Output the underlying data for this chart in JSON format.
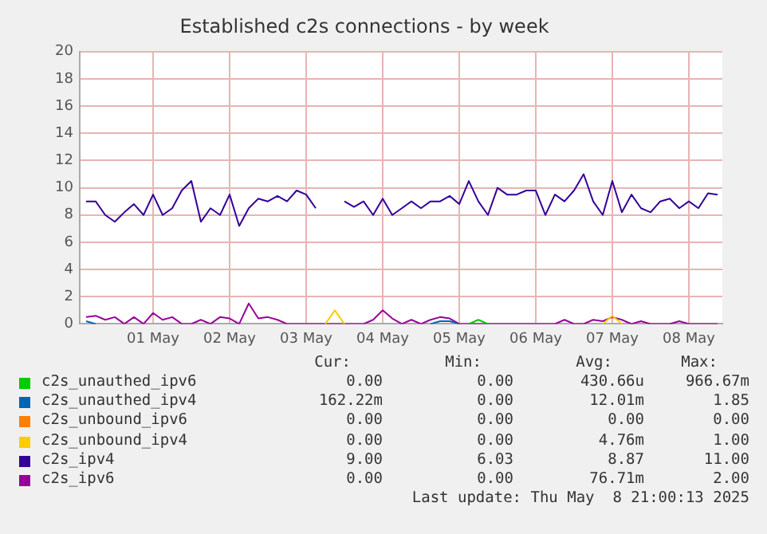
{
  "chart_data": {
    "type": "line",
    "title": "Established c2s connections - by week",
    "x": [
      "2025-04-30T15:00",
      "2025-04-30T18:00",
      "2025-04-30T21:00",
      "2025-05-01T00:00",
      "2025-05-01T03:00",
      "2025-05-01T06:00",
      "2025-05-01T09:00",
      "2025-05-01T12:00",
      "2025-05-01T15:00",
      "2025-05-01T18:00",
      "2025-05-01T21:00",
      "2025-05-02T00:00",
      "2025-05-02T03:00",
      "2025-05-02T06:00",
      "2025-05-02T09:00",
      "2025-05-02T12:00",
      "2025-05-02T15:00",
      "2025-05-02T18:00",
      "2025-05-02T21:00",
      "2025-05-03T00:00",
      "2025-05-03T03:00",
      "2025-05-03T06:00",
      "2025-05-03T09:00",
      "2025-05-03T12:00",
      "2025-05-03T15:00",
      "2025-05-03T18:00",
      "2025-05-03T21:00",
      "2025-05-04T00:00",
      "2025-05-04T03:00",
      "2025-05-04T06:00",
      "2025-05-04T09:00",
      "2025-05-04T12:00",
      "2025-05-04T15:00",
      "2025-05-04T18:00",
      "2025-05-04T21:00",
      "2025-05-05T00:00",
      "2025-05-05T03:00",
      "2025-05-05T06:00",
      "2025-05-05T09:00",
      "2025-05-05T12:00",
      "2025-05-05T15:00",
      "2025-05-05T18:00",
      "2025-05-05T21:00",
      "2025-05-06T00:00",
      "2025-05-06T03:00",
      "2025-05-06T06:00",
      "2025-05-06T09:00",
      "2025-05-06T12:00",
      "2025-05-06T15:00",
      "2025-05-06T18:00",
      "2025-05-06T21:00",
      "2025-05-07T00:00",
      "2025-05-07T03:00",
      "2025-05-07T06:00",
      "2025-05-07T09:00",
      "2025-05-07T12:00",
      "2025-05-07T15:00",
      "2025-05-07T18:00",
      "2025-05-07T21:00",
      "2025-05-08T00:00",
      "2025-05-08T03:00",
      "2025-05-08T06:00",
      "2025-05-08T09:00",
      "2025-05-08T12:00",
      "2025-05-08T15:00",
      "2025-05-08T18:00",
      "2025-05-08T21:00"
    ],
    "series": [
      {
        "name": "c2s_unauthed_ipv6",
        "color": "#00cc00",
        "values": [
          null,
          null,
          null,
          null,
          null,
          null,
          null,
          null,
          null,
          null,
          null,
          null,
          null,
          null,
          null,
          null,
          null,
          null,
          null,
          null,
          null,
          null,
          null,
          null,
          null,
          null,
          null,
          null,
          null,
          null,
          null,
          null,
          null,
          null,
          null,
          null,
          null,
          null,
          null,
          null,
          0,
          0.3,
          0,
          null,
          null,
          null,
          null,
          null,
          null,
          null,
          null,
          null,
          null,
          null,
          null,
          null,
          null,
          null,
          null,
          null,
          null,
          null,
          null,
          null,
          null,
          null,
          null
        ]
      },
      {
        "name": "c2s_unauthed_ipv4",
        "color": "#0066b3",
        "values": [
          0.2,
          0,
          null,
          null,
          null,
          null,
          null,
          null,
          null,
          null,
          null,
          null,
          null,
          null,
          null,
          null,
          null,
          null,
          null,
          null,
          null,
          null,
          null,
          null,
          null,
          null,
          null,
          null,
          null,
          null,
          null,
          null,
          null,
          null,
          null,
          null,
          0,
          0.2,
          0.2,
          0,
          null,
          null,
          null,
          null,
          null,
          null,
          null,
          null,
          null,
          null,
          null,
          null,
          null,
          null,
          null,
          null,
          null,
          null,
          null,
          null,
          null,
          null,
          null,
          null,
          null,
          null,
          null
        ]
      },
      {
        "name": "c2s_unbound_ipv6",
        "color": "#ff8000",
        "values": [
          null,
          null,
          null,
          null,
          null,
          null,
          null,
          null,
          null,
          null,
          null,
          null,
          null,
          null,
          null,
          null,
          null,
          null,
          null,
          null,
          null,
          null,
          null,
          null,
          null,
          null,
          null,
          null,
          null,
          null,
          null,
          null,
          null,
          null,
          null,
          null,
          null,
          null,
          null,
          null,
          null,
          null,
          null,
          null,
          null,
          null,
          null,
          null,
          null,
          null,
          null,
          null,
          null,
          null,
          null,
          null,
          null,
          null,
          null,
          null,
          null,
          null,
          null,
          null,
          null,
          null,
          null
        ]
      },
      {
        "name": "c2s_unbound_ipv4",
        "color": "#ffcc00",
        "values": [
          null,
          null,
          null,
          null,
          null,
          null,
          null,
          null,
          null,
          null,
          null,
          null,
          null,
          null,
          null,
          null,
          null,
          null,
          null,
          null,
          null,
          null,
          null,
          null,
          null,
          0,
          1,
          0,
          null,
          null,
          null,
          null,
          null,
          null,
          null,
          null,
          null,
          null,
          null,
          null,
          null,
          null,
          null,
          null,
          null,
          null,
          null,
          null,
          null,
          null,
          null,
          null,
          null,
          null,
          0,
          0.6,
          0,
          null,
          null,
          null,
          null,
          null,
          null,
          null,
          null,
          null,
          null
        ]
      },
      {
        "name": "c2s_ipv4",
        "color": "#330099",
        "values": [
          9,
          9,
          8,
          7.5,
          8.2,
          8.8,
          8,
          9.5,
          8,
          8.5,
          9.8,
          10.5,
          7.5,
          8.5,
          8,
          9.5,
          7.2,
          8.5,
          9.2,
          9,
          9.4,
          9,
          9.8,
          9.5,
          8.5,
          null,
          null,
          9,
          8.6,
          9,
          8,
          9.2,
          8,
          8.5,
          9,
          8.5,
          9,
          9,
          9.4,
          8.8,
          10.5,
          9,
          8,
          10,
          9.5,
          9.5,
          9.8,
          9.8,
          8,
          9.5,
          9,
          9.8,
          11,
          9,
          8,
          10.5,
          8.2,
          9.5,
          8.5,
          8.2,
          9,
          9.2,
          8.5,
          9,
          8.5,
          9.6,
          9.5
        ]
      },
      {
        "name": "c2s_ipv6",
        "color": "#990099",
        "values": [
          0.5,
          0.6,
          0.3,
          0.5,
          0,
          0.5,
          0,
          0.8,
          0.3,
          0.5,
          0,
          0,
          0.3,
          0,
          0.5,
          0.4,
          0,
          1.5,
          0.4,
          0.5,
          0.3,
          0,
          0,
          0,
          0,
          0,
          0,
          0,
          0,
          0,
          0.3,
          1,
          0.4,
          0,
          0.3,
          0,
          0.3,
          0.5,
          0.4,
          0,
          0,
          0,
          0,
          0,
          0,
          0,
          0,
          0,
          0,
          0,
          0.3,
          0,
          0,
          0.3,
          0.2,
          0.5,
          0.3,
          0,
          0.2,
          0,
          0,
          0,
          0.2,
          0,
          0,
          0,
          0
        ]
      }
    ],
    "xlim": [
      "2025-04-30T13:00",
      "2025-05-08T22:30"
    ],
    "xticks": [
      {
        "value": "2025-05-01T12:00",
        "label": "01 May"
      },
      {
        "value": "2025-05-02T12:00",
        "label": "02 May"
      },
      {
        "value": "2025-05-03T12:00",
        "label": "03 May"
      },
      {
        "value": "2025-05-04T12:00",
        "label": "04 May"
      },
      {
        "value": "2025-05-05T12:00",
        "label": "05 May"
      },
      {
        "value": "2025-05-06T12:00",
        "label": "06 May"
      },
      {
        "value": "2025-05-07T12:00",
        "label": "07 May"
      },
      {
        "value": "2025-05-08T12:00",
        "label": "08 May"
      }
    ],
    "ylim": [
      0,
      20
    ],
    "yticks": [
      0,
      2,
      4,
      6,
      8,
      10,
      12,
      14,
      16,
      18,
      20
    ],
    "grid": true,
    "legend": "bottom",
    "marker": "none",
    "line_style": "solid",
    "annotations": [
      "Cur:",
      "Min:",
      "Avg:",
      "Max:",
      "0.00",
      "0.00",
      "430.66u",
      "966.67m",
      "162.22m",
      "0.00",
      "12.01m",
      "1.85",
      "0.00",
      "0.00",
      "0.00",
      "0.00",
      "0.00",
      "0.00",
      "4.76m",
      "1.00",
      "9.00",
      "6.03",
      "8.87",
      "11.00",
      "0.00",
      "0.00",
      "76.71m",
      "2.00",
      "Last update: Thu May  8 21:00:13 2025"
    ]
  }
}
